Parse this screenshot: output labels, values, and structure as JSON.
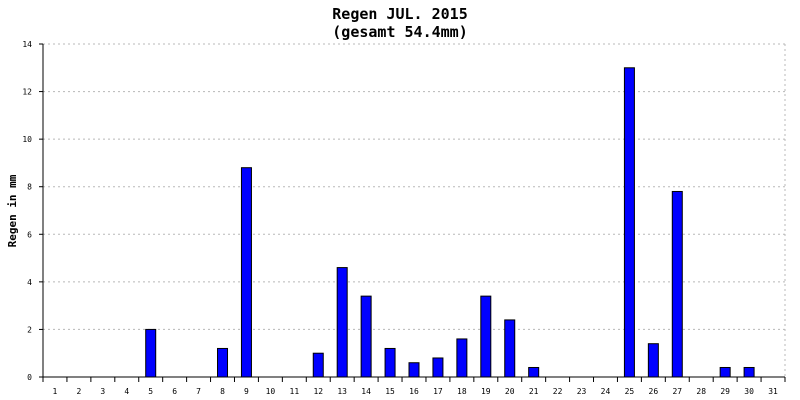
{
  "chart_data": {
    "type": "bar",
    "title": "Regen JUL. 2015",
    "subtitle": "(gesamt 54.4mm)",
    "xlabel": "",
    "ylabel": "Regen in mm",
    "ylim": [
      0,
      14
    ],
    "yticks": [
      0,
      2,
      4,
      6,
      8,
      10,
      12,
      14
    ],
    "grid": true,
    "bar_color": "#0000ff",
    "categories": [
      "1",
      "2",
      "3",
      "4",
      "5",
      "6",
      "7",
      "8",
      "9",
      "10",
      "11",
      "12",
      "13",
      "14",
      "15",
      "16",
      "17",
      "18",
      "19",
      "20",
      "21",
      "22",
      "23",
      "24",
      "25",
      "26",
      "27",
      "28",
      "29",
      "30",
      "31"
    ],
    "values": [
      0,
      0,
      0,
      0,
      2.0,
      0,
      0,
      1.2,
      8.8,
      0,
      0,
      1.0,
      4.6,
      3.4,
      1.2,
      0.6,
      0.8,
      1.6,
      3.4,
      2.4,
      0.4,
      0,
      0,
      0,
      13.0,
      1.4,
      7.8,
      0,
      0.4,
      0.4,
      0
    ]
  }
}
